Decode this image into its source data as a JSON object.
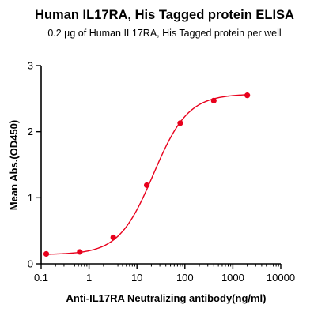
{
  "chart_data": {
    "type": "scatter",
    "title": "Human IL17RA,  His Tagged protein ELISA",
    "subtitle": "0.2 µg of Human IL17RA, His Tagged protein per well",
    "xlabel": "Anti-IL17RA Neutralizing antibody(ng/ml)",
    "ylabel": "Mean Abs.(OD450)",
    "x_scale": "log",
    "xlim": [
      0.1,
      10000
    ],
    "ylim": [
      0,
      3
    ],
    "x_ticks": [
      "0.1",
      "1",
      "10",
      "100",
      "1000",
      "10000"
    ],
    "y_ticks": [
      "0",
      "1",
      "2",
      "3"
    ],
    "grid": false,
    "color": "#e8001c",
    "series": [
      {
        "x": [
          0.128,
          0.64,
          3.2,
          16,
          80,
          400,
          2000
        ],
        "y": [
          0.15,
          0.18,
          0.4,
          1.19,
          2.13,
          2.47,
          2.55
        ],
        "fit": {
          "bottom": 0.14,
          "top": 2.57,
          "ec50": 22,
          "hill": 1.2
        }
      }
    ]
  }
}
